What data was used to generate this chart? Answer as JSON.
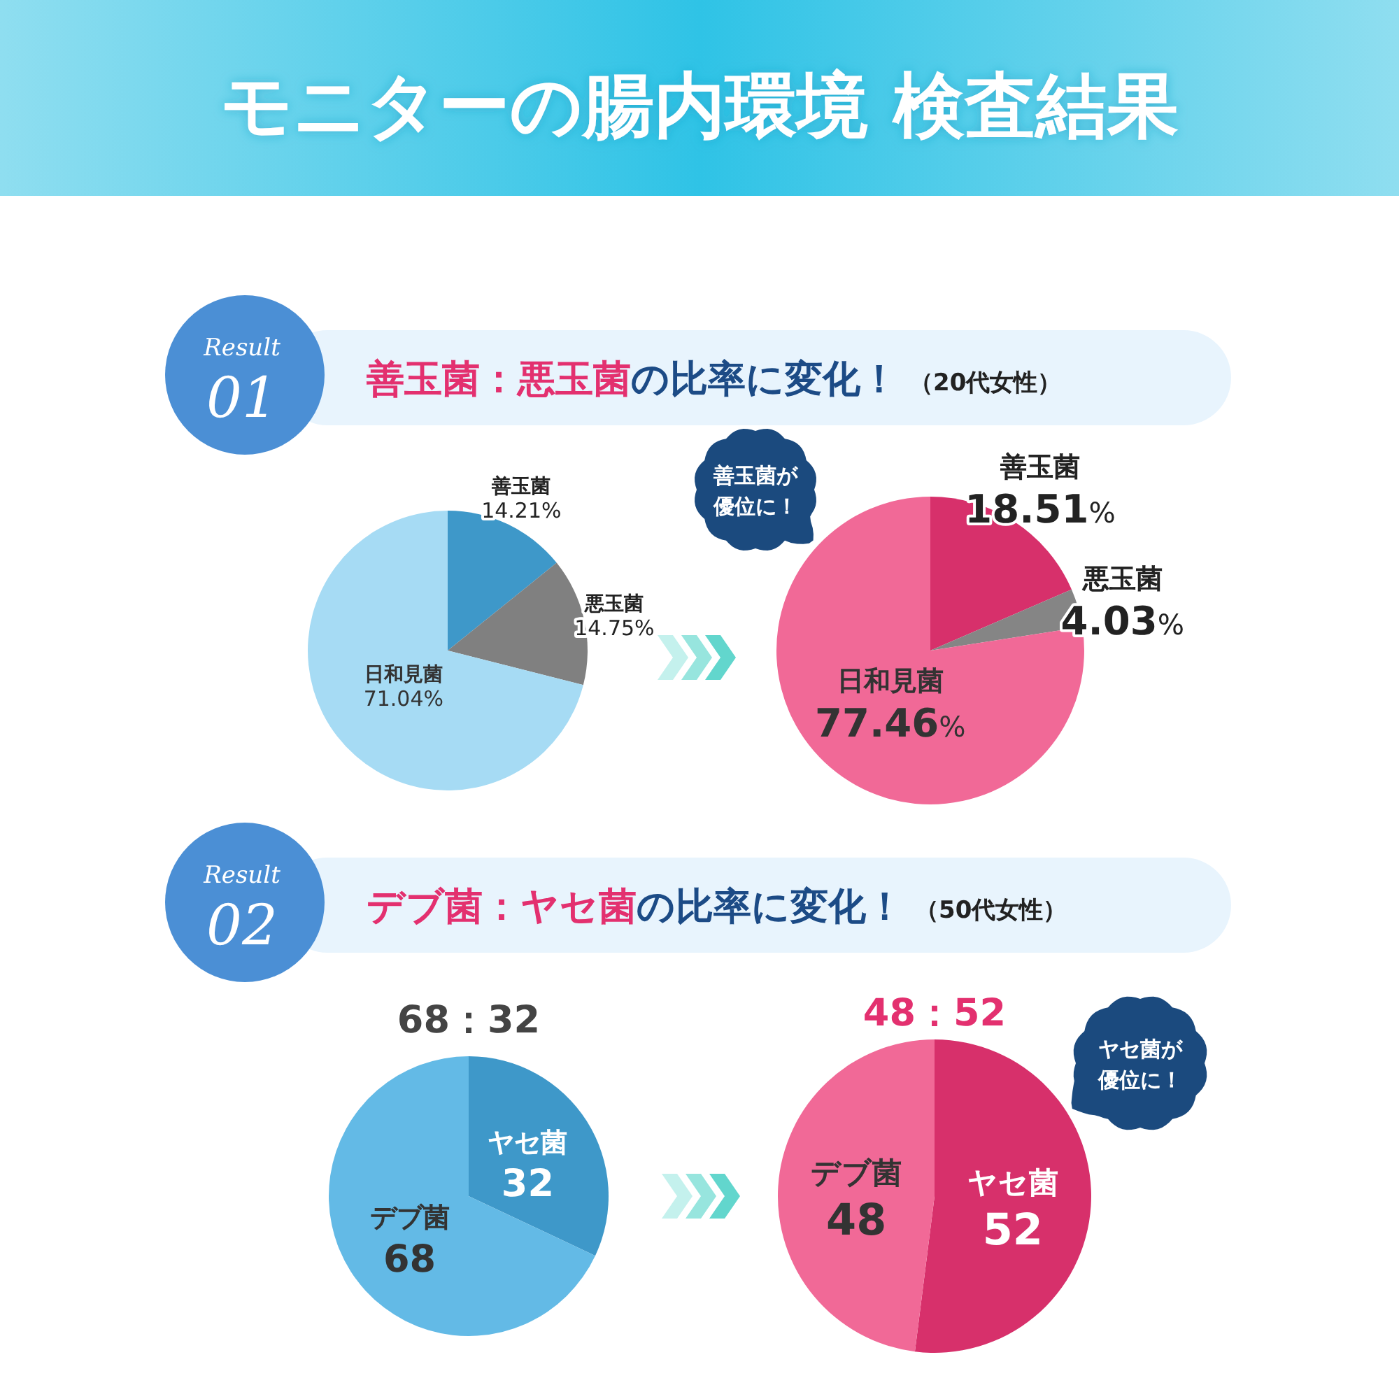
{
  "chart_data": [
    {
      "type": "other",
      "title": "モニターの腸内環境 検査結果"
    },
    {
      "type": "other",
      "title": "善玉菌：悪玉菌の比率に変化！",
      "subtitle": "（20代女性）",
      "annotations": [
        "Result 01"
      ]
    },
    {
      "type": "pie",
      "categories": [
        "善玉菌",
        "悪玉菌",
        "日和見菌"
      ],
      "values": [
        14.21,
        14.75,
        71.04
      ],
      "colors": [
        "#3e98c9",
        "#808080",
        "#a6dbf4"
      ],
      "value_labels": [
        "14.21%",
        "14.75%",
        "71.04%"
      ]
    },
    {
      "type": "pie",
      "categories": [
        "善玉菌",
        "悪玉菌",
        "日和見菌"
      ],
      "values": [
        18.51,
        4.03,
        77.46
      ],
      "colors": [
        "#d7306b",
        "#858585",
        "#f16997"
      ],
      "value_labels": [
        "18.51%",
        "4.03%",
        "77.46%"
      ],
      "annotations": [
        "善玉菌が優位に！"
      ]
    },
    {
      "type": "other",
      "title": "デブ菌：ヤセ菌の比率に変化！",
      "subtitle": "（50代女性）",
      "annotations": [
        "Result 02"
      ]
    },
    {
      "type": "pie",
      "title": "68：32",
      "categories": [
        "ヤセ菌",
        "デブ菌"
      ],
      "values": [
        32,
        68
      ],
      "colors": [
        "#3e98c9",
        "#63bae6"
      ],
      "value_labels": [
        "32",
        "68"
      ]
    },
    {
      "type": "pie",
      "title": "48：52",
      "categories": [
        "ヤセ菌",
        "デブ菌"
      ],
      "values": [
        52,
        48
      ],
      "colors": [
        "#d7306b",
        "#f16997"
      ],
      "value_labels": [
        "52",
        "48"
      ],
      "annotations": [
        "ヤセ菌が優位に！"
      ]
    }
  ]
}
